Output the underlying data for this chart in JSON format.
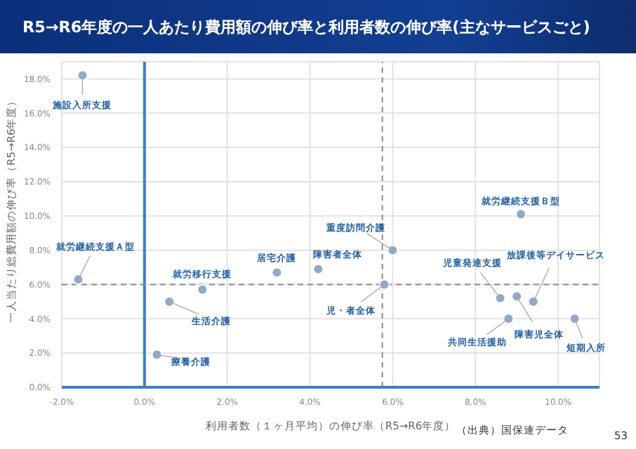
{
  "chart_data": {
    "type": "scatter",
    "title": "R5→R6年度の一人あたり費用額の伸び率と利用者数の伸び率(主なサービスごと)",
    "xlabel": "利用者数（１ヶ月平均）の伸び率（R5→R6年度）",
    "ylabel": "一人当たり総費用額の伸び率（R5→R6年度）",
    "x": [
      -1.5,
      -1.6,
      1.4,
      0.6,
      0.3,
      3.2,
      4.2,
      6.0,
      5.8,
      9.1,
      8.6,
      9.0,
      9.4,
      8.8,
      10.4
    ],
    "series": [
      {
        "color": "#8fa9c8",
        "values": [
          18.2,
          6.3,
          5.7,
          5.0,
          1.9,
          6.7,
          6.9,
          8.0,
          6.0,
          10.1,
          5.2,
          5.3,
          5.0,
          4.0,
          4.0
        ]
      }
    ],
    "xlim": [
      -2,
      11
    ],
    "ylim": [
      0,
      19
    ],
    "xticks": [
      {
        "value": -2,
        "label": "-2.0%"
      },
      {
        "value": 0,
        "label": "0.0%"
      },
      {
        "value": 2,
        "label": "2.0%"
      },
      {
        "value": 4,
        "label": "4.0%"
      },
      {
        "value": 6,
        "label": "6.0%"
      },
      {
        "value": 8,
        "label": "8.0%"
      },
      {
        "value": 10,
        "label": "10.0%"
      }
    ],
    "yticks": [
      {
        "value": 0,
        "label": "0.0%"
      },
      {
        "value": 2,
        "label": "2.0%"
      },
      {
        "value": 4,
        "label": "4.0%"
      },
      {
        "value": 6,
        "label": "6.0%"
      },
      {
        "value": 8,
        "label": "8.0%"
      },
      {
        "value": 10,
        "label": "10.0%"
      },
      {
        "value": 12,
        "label": "12.0%"
      },
      {
        "value": 14,
        "label": "14.0%"
      },
      {
        "value": 16,
        "label": "16.0%"
      },
      {
        "value": 18,
        "label": "18.0%"
      }
    ],
    "ref_lines": [
      {
        "axis": "x",
        "value": 0,
        "color": "#3b7dd8",
        "line_style": "solid"
      },
      {
        "axis": "x",
        "value": 5.75,
        "color": "#8a8a8a",
        "line_style": "dashed"
      },
      {
        "axis": "y",
        "value": 6,
        "color": "#8a8a8a",
        "line_style": "dashed"
      }
    ],
    "grid": true,
    "marker": "circle",
    "legend": false,
    "annotations": [
      {
        "text": "施設入所支援",
        "x": -1.5,
        "y": 18.2
      },
      {
        "text": "就労継続支援Ａ型",
        "x": -1.6,
        "y": 6.3
      },
      {
        "text": "就労移行支援",
        "x": 1.4,
        "y": 5.7
      },
      {
        "text": "生活介護",
        "x": 0.6,
        "y": 5.0
      },
      {
        "text": "療養介護",
        "x": 0.3,
        "y": 1.9
      },
      {
        "text": "居宅介護",
        "x": 3.2,
        "y": 6.7
      },
      {
        "text": "障害者全体",
        "x": 4.2,
        "y": 6.9
      },
      {
        "text": "重度訪問介護",
        "x": 6.0,
        "y": 8.0
      },
      {
        "text": "児・者全体",
        "x": 5.8,
        "y": 6.0
      },
      {
        "text": "就労継続支援Ｂ型",
        "x": 9.1,
        "y": 10.1
      },
      {
        "text": "児童発達支援",
        "x": 8.6,
        "y": 5.2
      },
      {
        "text": "障害児全体",
        "x": 9.0,
        "y": 5.3
      },
      {
        "text": "放課後等デイサービス",
        "x": 9.4,
        "y": 5.0
      },
      {
        "text": "共同生活援助",
        "x": 8.8,
        "y": 4.0
      },
      {
        "text": "短期入所",
        "x": 10.4,
        "y": 4.0
      },
      "（出典）国保連データ",
      "53"
    ]
  }
}
